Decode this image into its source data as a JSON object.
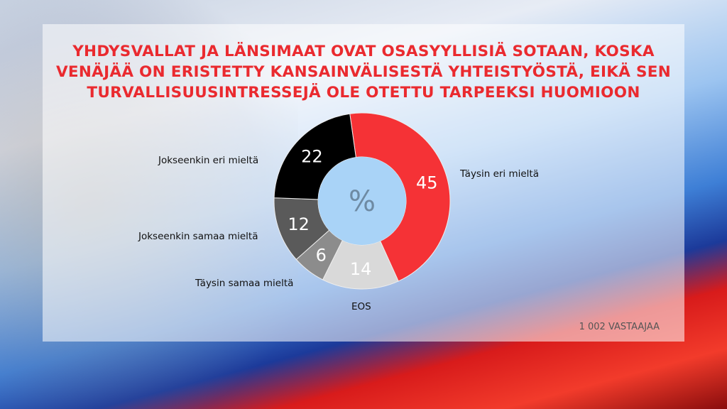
{
  "title": "YHDYSVALLAT JA LÄNSIMAAT OVAT OSASYYLLISIÄ SOTAAN, KOSKA VENÄJÄÄ ON ERISTETTY KANSAINVÄLISESTÄ YHTEISTYÖSTÄ, EIKÄ SEN TURVALLISUUSINTRESSEJÄ OLE OTETTU TARPEEKSI HUOMIOON",
  "respondents": "1 002 VASTAAJAA",
  "chart_data": {
    "type": "pie",
    "donut": true,
    "center_label": "%",
    "title": "YHDYSVALLAT JA LÄNSIMAAT OVAT OSASYYLLISIÄ SOTAAN, KOSKA VENÄJÄÄ ON ERISTETTY KANSAINVÄLISESTÄ YHTEISTYÖSTÄ, EIKÄ SEN TURVALLISUUSINTRESSEJÄ OLE OTETTU TARPEEKSI HUOMIOON",
    "categories": [
      "Täysin eri mieltä",
      "EOS",
      "Täysin samaa mieltä",
      "Jokseenkin samaa mieltä",
      "Jokseenkin eri mieltä"
    ],
    "values": [
      45,
      14,
      6,
      12,
      22
    ],
    "colors": [
      "#f53236",
      "#d9d9d9",
      "#8c8c8c",
      "#5a5a5a",
      "#000000"
    ]
  }
}
